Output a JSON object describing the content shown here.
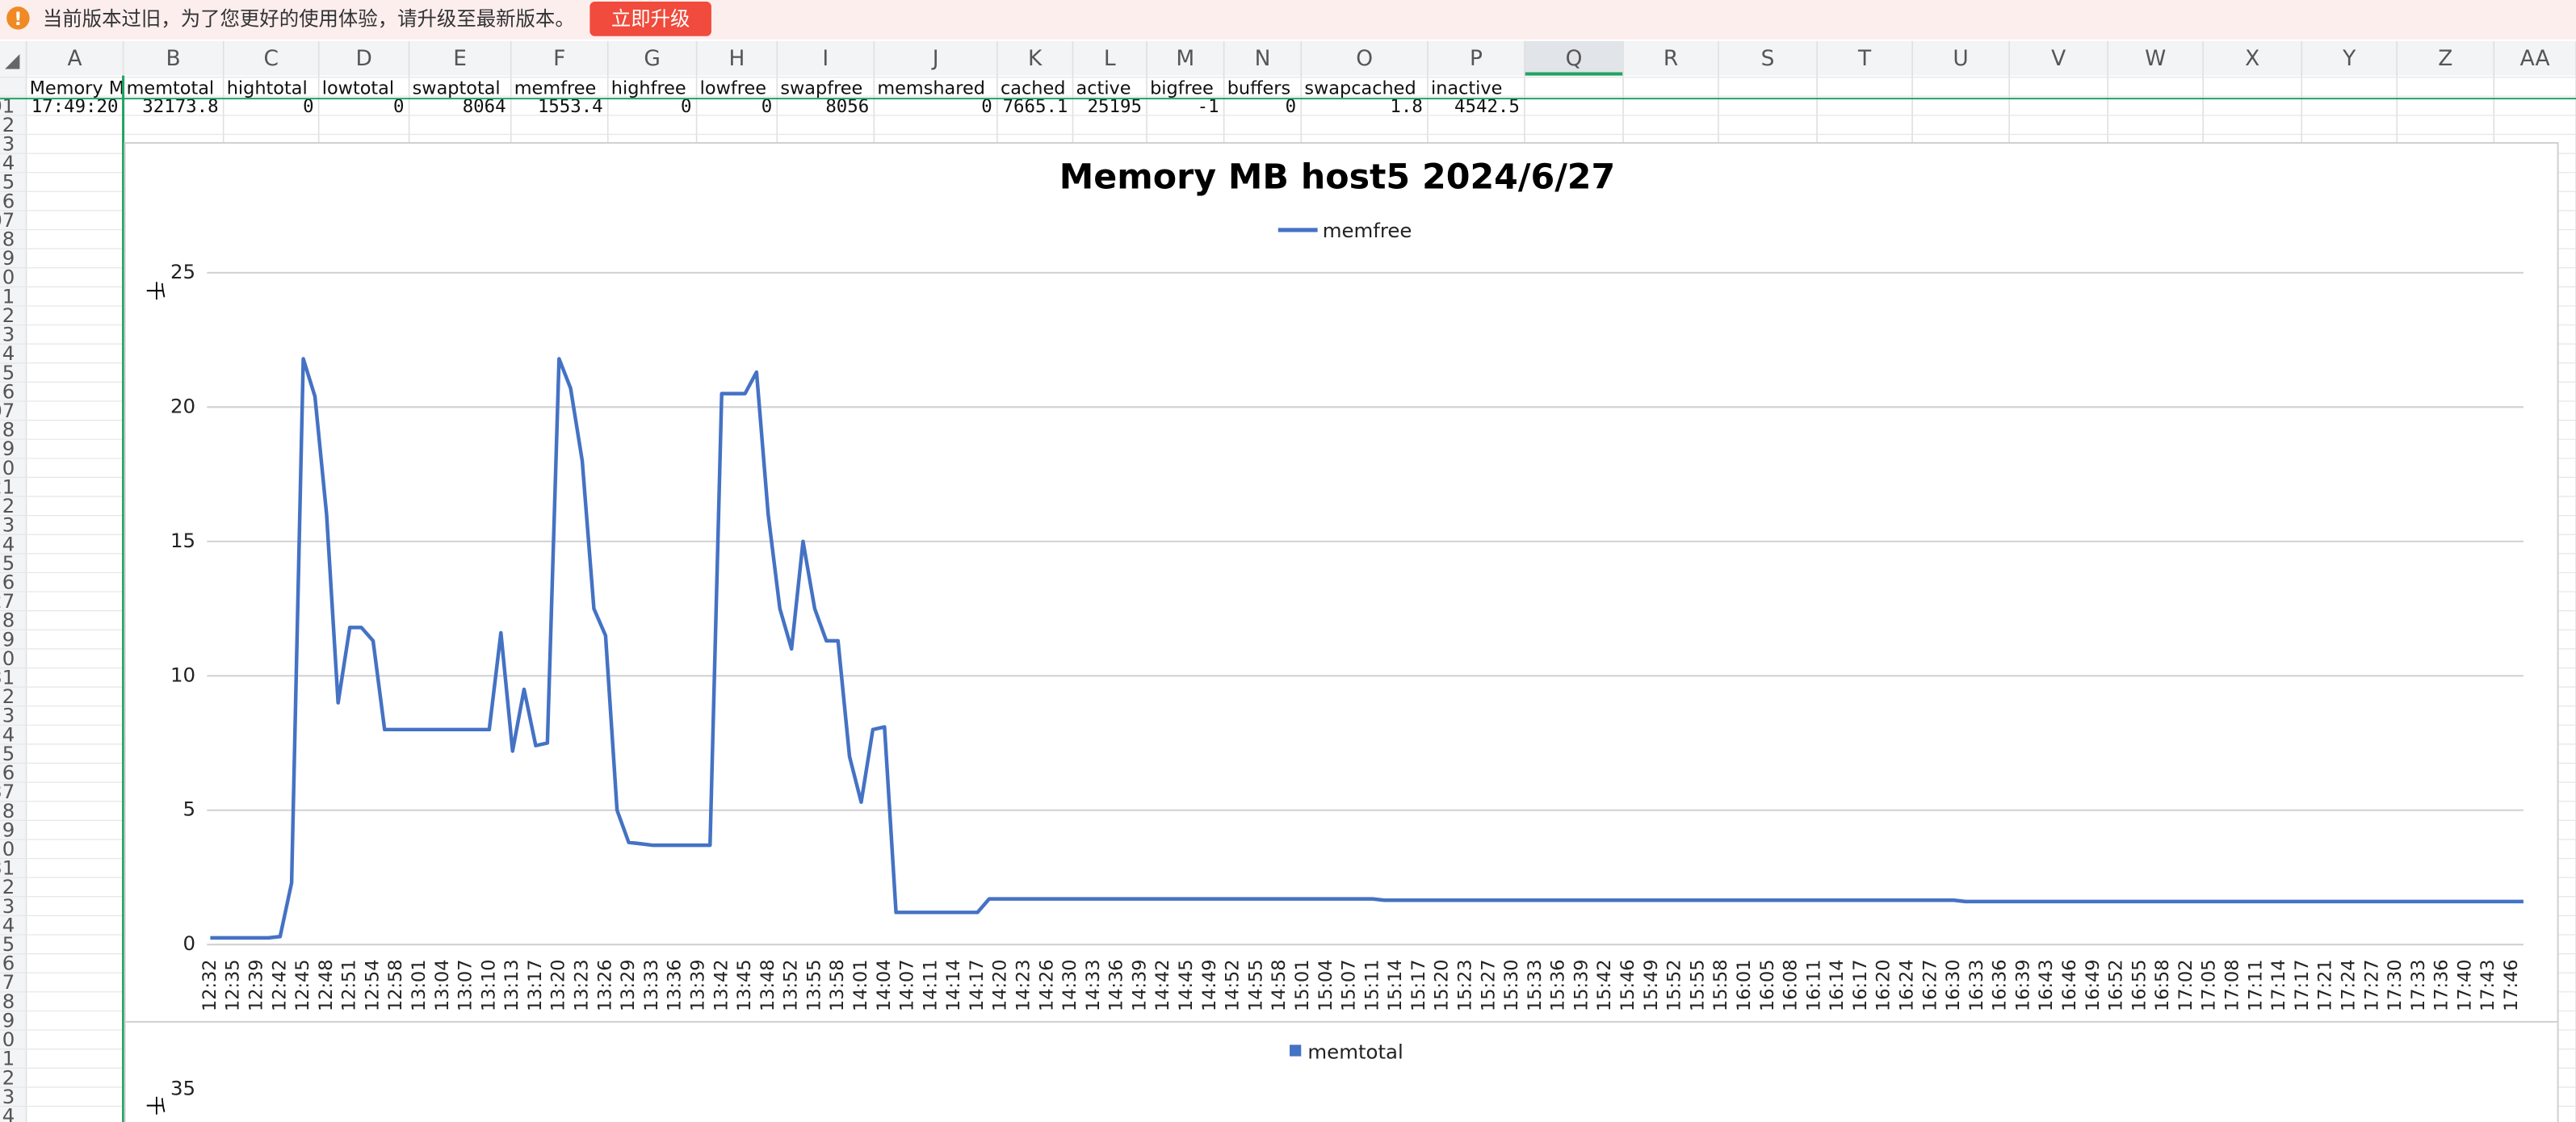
{
  "banner": {
    "icon": "!",
    "message": "当前版本过旧，为了您更好的使用体验，请升级至最新版本。",
    "button": "立即升级"
  },
  "sheet": {
    "columns": [
      "A",
      "B",
      "C",
      "D",
      "E",
      "F",
      "G",
      "H",
      "I",
      "J",
      "K",
      "L",
      "M",
      "N",
      "O",
      "P",
      "Q",
      "R",
      "S",
      "T",
      "U",
      "V",
      "W",
      "X",
      "Y",
      "Z",
      "AA"
    ],
    "row_labels": [
      "01",
      "2",
      "3",
      "4",
      "5",
      "6",
      "07",
      "8",
      "9",
      "0",
      "1",
      "2",
      "3",
      "4",
      "5",
      "6",
      "07",
      "8",
      "9",
      "0",
      "21",
      "2",
      "3",
      "4",
      "5",
      "6",
      "27",
      "8",
      "9",
      "0",
      "31",
      "2",
      "3",
      "4",
      "5",
      "6",
      "37",
      "8",
      "9",
      "0",
      "31",
      "2",
      "3",
      "4",
      "5",
      "6",
      "7",
      "8",
      "9",
      "0",
      "1",
      "2",
      "3",
      "4"
    ],
    "rows": [
      [
        "Memory  M",
        "memtotal",
        "hightotal",
        "lowtotal",
        "swaptotal",
        "memfree",
        "highfree",
        "lowfree",
        "swapfree",
        "memshared",
        "cached",
        "active",
        "bigfree",
        "buffers",
        "swapcached",
        "inactive"
      ],
      [
        "17:49:20",
        "32173.8",
        "0",
        "0",
        "8064",
        "1553.4",
        "0",
        "0",
        "8056",
        "0",
        "7665.1",
        "25195",
        "-1",
        "0",
        "1.8",
        "4542.5"
      ]
    ]
  },
  "chart_data": [
    {
      "type": "line",
      "title": "Memory MB host5  2024/6/27",
      "ylabel": "千",
      "categories": [
        "12:32",
        null,
        "12:35",
        null,
        "12:39",
        null,
        "12:42",
        null,
        "12:45",
        null,
        "12:48",
        null,
        "12:51",
        null,
        "12:54",
        null,
        "12:58",
        null,
        "13:01",
        null,
        "13:04",
        null,
        "13:07",
        null,
        "13:10",
        null,
        "13:13",
        null,
        "13:17",
        null,
        "13:20",
        null,
        "13:23",
        null,
        "13:26",
        null,
        "13:29",
        null,
        "13:33",
        null,
        "13:36",
        null,
        "13:39",
        null,
        "13:42",
        null,
        "13:45",
        null,
        "13:48",
        null,
        "13:52",
        null,
        "13:55",
        null,
        "13:58",
        null,
        "14:01",
        null,
        "14:04",
        null,
        "14:07",
        null,
        "14:11",
        null,
        "14:14",
        null,
        "14:17",
        null,
        "14:20",
        null,
        "14:23",
        null,
        "14:26",
        null,
        "14:30",
        null,
        "14:33",
        null,
        "14:36",
        null,
        "14:39",
        null,
        "14:42",
        null,
        "14:45",
        null,
        "14:49",
        null,
        "14:52",
        null,
        "14:55",
        null,
        "14:58",
        null,
        "15:01",
        null,
        "15:04",
        null,
        "15:07",
        null,
        "15:11",
        null,
        "15:14",
        null,
        "15:17",
        null,
        "15:20",
        null,
        "15:23",
        null,
        "15:27",
        null,
        "15:30",
        null,
        "15:33",
        null,
        "15:36",
        null,
        "15:39",
        null,
        "15:42",
        null,
        "15:46",
        null,
        "15:49",
        null,
        "15:52",
        null,
        "15:55",
        null,
        "15:58",
        null,
        "16:01",
        null,
        "16:05",
        null,
        "16:08",
        null,
        "16:11",
        null,
        "16:14",
        null,
        "16:17",
        null,
        "16:20",
        null,
        "16:24",
        null,
        "16:27",
        null,
        "16:30",
        null,
        "16:33",
        null,
        "16:36",
        null,
        "16:39",
        null,
        "16:43",
        null,
        "16:46",
        null,
        "16:49",
        null,
        "16:52",
        null,
        "16:55",
        null,
        "16:58",
        null,
        "17:02",
        null,
        "17:05",
        null,
        "17:08",
        null,
        "17:11",
        null,
        "17:14",
        null,
        "17:17",
        null,
        "17:21",
        null,
        "17:24",
        null,
        "17:27",
        null,
        "17:30",
        null,
        "17:33",
        null,
        "17:36",
        null,
        "17:40",
        null,
        "17:43",
        null,
        "17:46",
        null
      ],
      "series": [
        {
          "name": "memfree",
          "color": "#4472c4",
          "values": [
            0.25,
            0.25,
            0.25,
            0.25,
            0.25,
            0.25,
            0.3,
            2.3,
            21.8,
            20.4,
            16,
            9,
            11.8,
            11.8,
            11.3,
            8,
            8,
            8,
            8,
            8,
            8,
            8,
            8,
            8,
            8,
            11.6,
            7.2,
            9.5,
            7.4,
            7.5,
            21.8,
            20.7,
            18,
            12.5,
            11.5,
            5,
            3.8,
            3.75,
            3.7,
            3.7,
            3.7,
            3.7,
            3.7,
            3.7,
            20.5,
            20.5,
            20.5,
            21.3,
            16,
            12.5,
            11,
            15,
            12.5,
            11.3,
            11.3,
            7,
            5.3,
            8,
            8.1,
            1.2,
            1.2,
            1.2,
            1.2,
            1.2,
            1.2,
            1.2,
            1.2,
            1.7,
            1.7,
            1.7,
            1.7,
            1.7,
            1.7,
            1.7,
            1.7,
            1.7,
            1.7,
            1.7,
            1.7,
            1.7,
            1.7,
            1.7,
            1.7,
            1.7,
            1.7,
            1.7,
            1.7,
            1.7,
            1.7,
            1.7,
            1.7,
            1.7,
            1.7,
            1.7,
            1.7,
            1.7,
            1.7,
            1.7,
            1.7,
            1.7,
            1.7,
            1.65,
            1.65,
            1.65,
            1.65,
            1.65,
            1.65,
            1.65,
            1.65,
            1.65,
            1.65,
            1.65,
            1.65,
            1.65,
            1.65,
            1.65,
            1.65,
            1.65,
            1.65,
            1.65,
            1.65,
            1.65,
            1.65,
            1.65,
            1.65,
            1.65,
            1.65,
            1.65,
            1.65,
            1.65,
            1.65,
            1.65,
            1.65,
            1.65,
            1.65,
            1.65,
            1.65,
            1.65,
            1.65,
            1.65,
            1.65,
            1.65,
            1.65,
            1.65,
            1.65,
            1.65,
            1.65,
            1.65,
            1.65,
            1.65,
            1.65,
            1.6,
            1.6,
            1.6,
            1.6,
            1.6,
            1.6,
            1.6,
            1.6,
            1.6,
            1.6,
            1.6,
            1.6,
            1.6,
            1.6,
            1.6,
            1.6,
            1.6,
            1.6,
            1.6,
            1.6,
            1.6,
            1.6,
            1.6,
            1.6,
            1.6,
            1.6,
            1.6,
            1.6,
            1.6,
            1.6,
            1.6,
            1.6,
            1.6,
            1.6,
            1.6,
            1.6,
            1.6,
            1.6,
            1.6,
            1.6,
            1.6,
            1.6,
            1.6,
            1.6,
            1.6,
            1.6,
            1.6,
            1.6,
            1.6
          ]
        }
      ],
      "ylim": [
        0,
        25
      ],
      "yticks": [
        0,
        5,
        10,
        15,
        20,
        25
      ],
      "grid": true
    },
    {
      "type": "bar",
      "ylabel": "千",
      "series": [
        {
          "name": "memtotal",
          "color": "#4472c4"
        }
      ],
      "yticks": [
        35
      ]
    }
  ]
}
